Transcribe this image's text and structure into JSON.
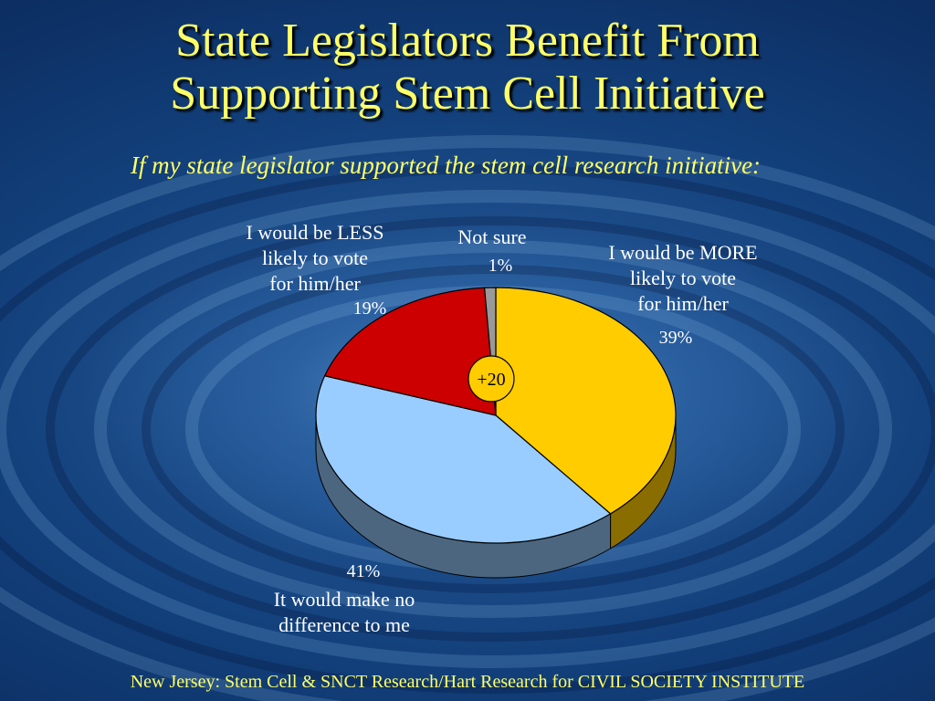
{
  "slide": {
    "title_line1": "State Legislators Benefit From",
    "title_line2": "Supporting Stem Cell Initiative",
    "subtitle": "If my state legislator supported the stem cell research initiative:",
    "source": "New Jersey: Stem Cell & SNCT Research/Hart Research for CIVIL SOCIETY INSTITUTE"
  },
  "chart_data": {
    "type": "pie",
    "title": "",
    "slices": [
      {
        "label_lines": [
          "I would be MORE",
          "likely to vote",
          "for him/her"
        ],
        "value": 39,
        "value_label": "39%",
        "color": "#ffcc00",
        "side_color": "#8a6d00"
      },
      {
        "label_lines": [
          "It would make no",
          "difference to me"
        ],
        "value": 41,
        "value_label": "41%",
        "color": "#99ccff",
        "side_color": "#4d6680"
      },
      {
        "label_lines": [
          "I would be LESS",
          "likely to vote",
          "for him/her"
        ],
        "value": 19,
        "value_label": "19%",
        "color": "#cc0000",
        "side_color": "#660000"
      },
      {
        "label_lines": [
          "Not sure"
        ],
        "value": 1,
        "value_label": "1%",
        "color": "#999999",
        "side_color": "#555555"
      }
    ],
    "annotation": "+20",
    "annotation_color": "#ffcc00"
  }
}
